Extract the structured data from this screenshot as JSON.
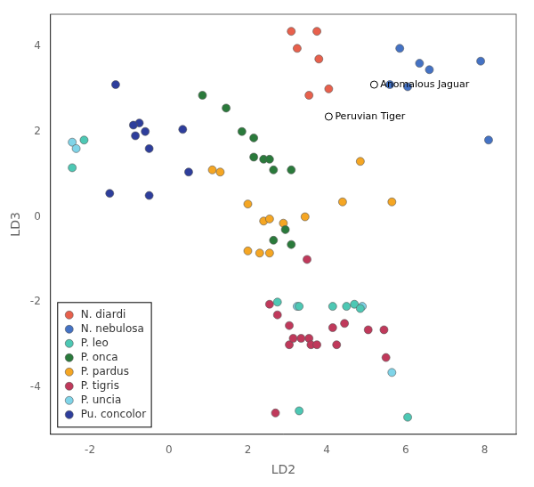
{
  "chart_data": {
    "type": "scatter",
    "xlabel": "LD2",
    "ylabel": "LD3",
    "series": [
      {
        "name": "N. diardi",
        "color": "#E8604C",
        "points": [
          [
            3.1,
            4.35
          ],
          [
            3.75,
            4.35
          ],
          [
            3.25,
            3.95
          ],
          [
            3.8,
            3.7
          ],
          [
            3.55,
            2.85
          ],
          [
            4.05,
            3.0
          ]
        ]
      },
      {
        "name": "N. nebulosa",
        "color": "#4472C4",
        "points": [
          [
            5.85,
            3.95
          ],
          [
            6.35,
            3.6
          ],
          [
            6.6,
            3.45
          ],
          [
            5.6,
            3.1
          ],
          [
            6.05,
            3.05
          ],
          [
            7.9,
            3.65
          ],
          [
            8.1,
            1.8
          ]
        ]
      },
      {
        "name": "P. leo",
        "color": "#4DC8B4",
        "points": [
          [
            -2.15,
            1.8
          ],
          [
            -2.45,
            1.15
          ],
          [
            2.75,
            -2.0
          ],
          [
            3.3,
            -2.1
          ],
          [
            4.15,
            -2.1
          ],
          [
            4.5,
            -2.1
          ],
          [
            4.7,
            -2.05
          ],
          [
            4.85,
            -2.15
          ],
          [
            3.3,
            -4.55
          ],
          [
            6.05,
            -4.7
          ]
        ]
      },
      {
        "name": "P. onca",
        "color": "#2A7A3B",
        "points": [
          [
            0.85,
            2.85
          ],
          [
            1.45,
            2.55
          ],
          [
            1.85,
            2.0
          ],
          [
            2.15,
            1.85
          ],
          [
            2.15,
            1.4
          ],
          [
            2.4,
            1.35
          ],
          [
            2.55,
            1.35
          ],
          [
            2.65,
            1.1
          ],
          [
            3.1,
            1.1
          ],
          [
            2.65,
            -0.55
          ],
          [
            3.1,
            -0.65
          ],
          [
            2.95,
            -0.3
          ]
        ]
      },
      {
        "name": "P. pardus",
        "color": "#F5A623",
        "points": [
          [
            1.1,
            1.1
          ],
          [
            1.3,
            1.05
          ],
          [
            2.0,
            0.3
          ],
          [
            2.4,
            -0.1
          ],
          [
            2.55,
            -0.05
          ],
          [
            2.9,
            -0.15
          ],
          [
            3.45,
            0.0
          ],
          [
            4.85,
            1.3
          ],
          [
            5.65,
            0.35
          ],
          [
            2.0,
            -0.8
          ],
          [
            2.3,
            -0.85
          ],
          [
            2.55,
            -0.85
          ],
          [
            4.4,
            0.35
          ]
        ]
      },
      {
        "name": "P. tigris",
        "color": "#C0395B",
        "points": [
          [
            2.55,
            -2.05
          ],
          [
            2.75,
            -2.3
          ],
          [
            3.05,
            -2.55
          ],
          [
            3.05,
            -3.0
          ],
          [
            3.15,
            -2.85
          ],
          [
            3.35,
            -2.85
          ],
          [
            3.55,
            -2.85
          ],
          [
            3.6,
            -3.0
          ],
          [
            3.75,
            -3.0
          ],
          [
            4.15,
            -2.6
          ],
          [
            4.25,
            -3.0
          ],
          [
            4.45,
            -2.5
          ],
          [
            5.05,
            -2.65
          ],
          [
            5.45,
            -2.65
          ],
          [
            5.5,
            -3.3
          ],
          [
            2.7,
            -4.6
          ],
          [
            3.5,
            -1.0
          ]
        ]
      },
      {
        "name": "P. uncia",
        "color": "#7FD4E8",
        "points": [
          [
            -2.45,
            1.75
          ],
          [
            -2.35,
            1.6
          ],
          [
            3.25,
            -2.1
          ],
          [
            4.9,
            -2.1
          ],
          [
            5.65,
            -3.65
          ]
        ]
      },
      {
        "name": "Pu. concolor",
        "color": "#2E3E9C",
        "points": [
          [
            -1.35,
            3.1
          ],
          [
            -0.75,
            2.2
          ],
          [
            -0.9,
            2.15
          ],
          [
            -0.6,
            2.0
          ],
          [
            -0.85,
            1.9
          ],
          [
            -0.5,
            1.6
          ],
          [
            -1.5,
            0.55
          ],
          [
            -0.5,
            0.5
          ],
          [
            0.35,
            2.05
          ],
          [
            0.5,
            1.05
          ]
        ]
      }
    ],
    "annotations": [
      {
        "text": "Anomalous Jaguar",
        "x": 5.2,
        "y": 3.1
      },
      {
        "text": "Peruvian Tiger",
        "x": 4.05,
        "y": 2.35
      }
    ],
    "xlim": [
      -3.0,
      8.8
    ],
    "ylim": [
      -5.1,
      4.75
    ],
    "xticks": [
      -2,
      0,
      2,
      4,
      6,
      8
    ],
    "yticks": [
      -4,
      -2,
      0,
      2,
      4
    ],
    "grid": false,
    "legend": "lower left"
  }
}
